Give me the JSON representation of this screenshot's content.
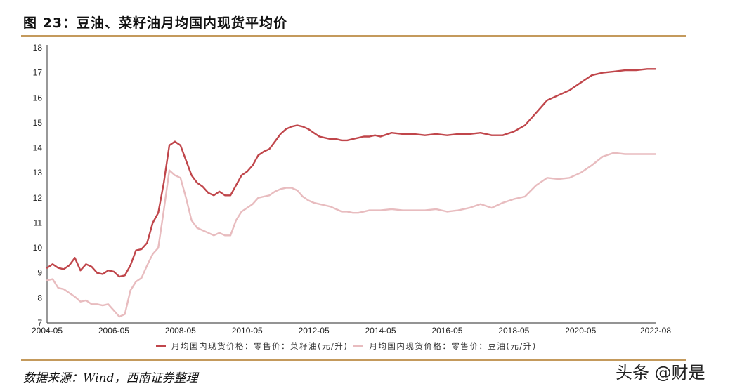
{
  "title": "图 23：豆油、菜籽油月均国内现货平均价",
  "source": "数据来源：Wind，西南证券整理",
  "watermark": "头条 @财是",
  "colors": {
    "rapeseed": "#c0464b",
    "soybean": "#e8bcbf",
    "rule": "#c49a5c",
    "axis": "#555555"
  },
  "legend": [
    {
      "label": "月均国内现货价格：零售价：菜籽油(元/升)",
      "color": "#c0464b"
    },
    {
      "label": "月均国内现货价格：零售价：豆油(元/升)",
      "color": "#e8bcbf"
    }
  ],
  "chart_data": {
    "type": "line",
    "title": "图 23：豆油、菜籽油月均国内现货平均价",
    "xlabel": "",
    "ylabel": "",
    "ylim": [
      7,
      18
    ],
    "yticks": [
      7,
      8,
      9,
      10,
      11,
      12,
      13,
      14,
      15,
      16,
      17,
      18
    ],
    "xticks": [
      "2004-05",
      "2006-05",
      "2008-05",
      "2010-05",
      "2012-05",
      "2014-05",
      "2016-05",
      "2018-05",
      "2020-05",
      "2022-08"
    ],
    "grid": false,
    "legend_position": "bottom",
    "x_months_from_2004_05": [
      0,
      2,
      4,
      6,
      8,
      10,
      12,
      14,
      16,
      18,
      20,
      22,
      24,
      26,
      28,
      30,
      32,
      34,
      36,
      38,
      40,
      42,
      44,
      46,
      48,
      50,
      52,
      54,
      56,
      58,
      60,
      62,
      64,
      66,
      68,
      70,
      72,
      74,
      76,
      78,
      80,
      82,
      84,
      86,
      88,
      90,
      92,
      94,
      96,
      98,
      100,
      102,
      104,
      106,
      108,
      110,
      112,
      114,
      116,
      118,
      120,
      124,
      128,
      132,
      136,
      140,
      144,
      148,
      152,
      156,
      160,
      164,
      168,
      172,
      176,
      180,
      184,
      188,
      192,
      196,
      200,
      204,
      208,
      212,
      216,
      219
    ],
    "series": [
      {
        "name": "月均国内现货价格：零售价：菜籽油(元/升)",
        "values": [
          9.2,
          9.35,
          9.2,
          9.15,
          9.3,
          9.6,
          9.1,
          9.35,
          9.25,
          9.0,
          8.95,
          9.1,
          9.05,
          8.85,
          8.9,
          9.3,
          9.9,
          9.95,
          10.2,
          11.0,
          11.4,
          12.6,
          14.1,
          14.25,
          14.1,
          13.5,
          12.9,
          12.6,
          12.45,
          12.2,
          12.1,
          12.25,
          12.1,
          12.1,
          12.5,
          12.9,
          13.05,
          13.3,
          13.7,
          13.85,
          13.95,
          14.25,
          14.55,
          14.75,
          14.85,
          14.9,
          14.85,
          14.75,
          14.6,
          14.45,
          14.4,
          14.35,
          14.35,
          14.3,
          14.3,
          14.35,
          14.4,
          14.45,
          14.45,
          14.5,
          14.45,
          14.6,
          14.55,
          14.55,
          14.5,
          14.55,
          14.5,
          14.55,
          14.55,
          14.6,
          14.5,
          14.5,
          14.65,
          14.9,
          15.4,
          15.9,
          16.1,
          16.3,
          16.6,
          16.9,
          17.0,
          17.05,
          17.1,
          17.1,
          17.15,
          17.15
        ],
        "color": "#c0464b"
      },
      {
        "name": "月均国内现货价格：零售价：豆油(元/升)",
        "values": [
          8.7,
          8.75,
          8.4,
          8.35,
          8.2,
          8.05,
          7.85,
          7.9,
          7.75,
          7.75,
          7.7,
          7.75,
          7.5,
          7.25,
          7.35,
          8.3,
          8.65,
          8.8,
          9.3,
          9.75,
          10.0,
          11.5,
          13.1,
          12.9,
          12.8,
          12.0,
          11.1,
          10.8,
          10.7,
          10.6,
          10.5,
          10.6,
          10.5,
          10.5,
          11.1,
          11.45,
          11.6,
          11.75,
          12.0,
          12.05,
          12.1,
          12.25,
          12.35,
          12.4,
          12.4,
          12.3,
          12.05,
          11.9,
          11.8,
          11.75,
          11.7,
          11.65,
          11.55,
          11.45,
          11.45,
          11.4,
          11.4,
          11.45,
          11.5,
          11.5,
          11.5,
          11.55,
          11.5,
          11.5,
          11.5,
          11.55,
          11.45,
          11.5,
          11.6,
          11.75,
          11.6,
          11.8,
          11.95,
          12.05,
          12.5,
          12.8,
          12.75,
          12.8,
          13.0,
          13.3,
          13.65,
          13.8,
          13.75,
          13.75,
          13.75,
          13.75
        ],
        "color": "#e8bcbf"
      }
    ]
  }
}
